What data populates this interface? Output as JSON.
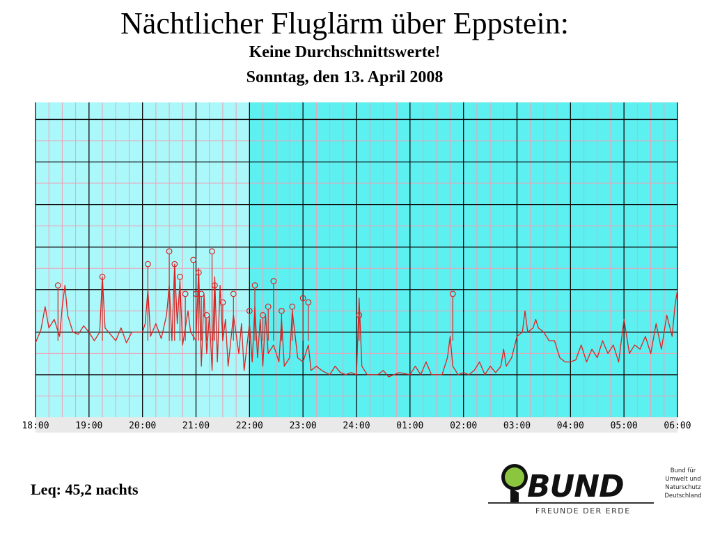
{
  "header": {
    "title": "Nächtlicher Fluglärm über Eppstein:",
    "subtitle": "Keine Durchschnittswerte!",
    "date_line": "Sonntag, den 13. April 2008"
  },
  "footer": {
    "leq": "Leq: 45,2 nachts"
  },
  "logo": {
    "name": "BUND",
    "tagline": "FREUNDE DER ERDE",
    "side_lines": [
      "Bund für",
      "Umwelt und",
      "Naturschutz",
      "Deutschland"
    ]
  },
  "colors": {
    "day_background": "#aaf8fa",
    "night_background": "#5cf0f0",
    "trace": "#dd2222",
    "major_grid": "#0a0a0a",
    "minor_grid": "#f0a0b4"
  },
  "chart_data": {
    "type": "line",
    "x_unit": "hours (18 = 18:00, 24 = 24:00, 30 = 06:00 next day)",
    "x_range": [
      18,
      30.0
    ],
    "night_from": 22,
    "x_ticks": [
      "18:00",
      "19:00",
      "20:00",
      "21:00",
      "22:00",
      "23:00",
      "24:00",
      "01:00",
      "02:00",
      "03:00",
      "04:00",
      "05:00",
      "06:00"
    ],
    "y_range": [
      0,
      7.4
    ],
    "grid": true,
    "peak_markers": true,
    "series": [
      {
        "points": [
          [
            18.0,
            1.75
          ],
          [
            18.1,
            2.05
          ],
          [
            18.18,
            2.6
          ],
          [
            18.25,
            2.1
          ],
          [
            18.35,
            2.3
          ],
          [
            18.45,
            1.9
          ],
          [
            18.5,
            2.6
          ],
          [
            18.55,
            3.1
          ],
          [
            18.6,
            2.4
          ],
          [
            18.7,
            2.0
          ],
          [
            18.8,
            1.95
          ],
          [
            18.9,
            2.15
          ],
          [
            19.0,
            2.0
          ],
          [
            19.1,
            1.8
          ],
          [
            19.2,
            2.0
          ],
          [
            19.25,
            3.3
          ],
          [
            19.3,
            2.1
          ],
          [
            19.4,
            1.95
          ],
          [
            19.5,
            1.8
          ],
          [
            19.6,
            2.1
          ],
          [
            19.7,
            1.75
          ],
          [
            19.8,
            2.0
          ],
          [
            19.9,
            2.0
          ],
          [
            20.0,
            2.0
          ],
          [
            20.05,
            2.2
          ],
          [
            20.1,
            3.0
          ],
          [
            20.15,
            1.9
          ],
          [
            20.25,
            2.2
          ],
          [
            20.35,
            1.85
          ],
          [
            20.45,
            2.4
          ],
          [
            20.5,
            3.1
          ],
          [
            20.55,
            1.8
          ],
          [
            20.6,
            3.6
          ],
          [
            20.65,
            2.2
          ],
          [
            20.7,
            3.2
          ],
          [
            20.75,
            1.7
          ],
          [
            20.85,
            2.5
          ],
          [
            20.9,
            2.0
          ],
          [
            21.0,
            1.8
          ],
          [
            21.05,
            3.5
          ],
          [
            21.1,
            1.2
          ],
          [
            21.15,
            2.9
          ],
          [
            21.2,
            1.5
          ],
          [
            21.25,
            2.4
          ],
          [
            21.3,
            1.1
          ],
          [
            21.35,
            3.3
          ],
          [
            21.4,
            1.3
          ],
          [
            21.45,
            3.1
          ],
          [
            21.5,
            1.8
          ],
          [
            21.55,
            2.3
          ],
          [
            21.6,
            1.2
          ],
          [
            21.7,
            2.4
          ],
          [
            21.8,
            1.5
          ],
          [
            21.85,
            2.2
          ],
          [
            21.9,
            1.1
          ],
          [
            22.0,
            2.2
          ],
          [
            22.05,
            1.3
          ],
          [
            22.1,
            2.6
          ],
          [
            22.15,
            1.4
          ],
          [
            22.2,
            2.3
          ],
          [
            22.25,
            1.2
          ],
          [
            22.3,
            2.4
          ],
          [
            22.35,
            1.5
          ],
          [
            22.45,
            1.7
          ],
          [
            22.55,
            1.3
          ],
          [
            22.6,
            2.3
          ],
          [
            22.65,
            1.2
          ],
          [
            22.75,
            1.4
          ],
          [
            22.8,
            2.5
          ],
          [
            22.9,
            1.4
          ],
          [
            23.0,
            1.3
          ],
          [
            23.05,
            1.5
          ],
          [
            23.1,
            1.7
          ],
          [
            23.15,
            1.1
          ],
          [
            23.25,
            1.2
          ],
          [
            23.35,
            1.1
          ],
          [
            23.5,
            1.0
          ],
          [
            23.6,
            1.2
          ],
          [
            23.7,
            1.05
          ],
          [
            23.8,
            1.0
          ],
          [
            23.9,
            1.05
          ],
          [
            24.0,
            1.0
          ],
          [
            24.05,
            2.8
          ],
          [
            24.1,
            1.2
          ],
          [
            24.2,
            1.0
          ],
          [
            24.4,
            1.0
          ],
          [
            24.5,
            1.1
          ],
          [
            24.6,
            0.95
          ],
          [
            24.8,
            1.05
          ],
          [
            25.0,
            1.0
          ],
          [
            25.1,
            1.2
          ],
          [
            25.2,
            1.0
          ],
          [
            25.3,
            1.3
          ],
          [
            25.4,
            1.0
          ],
          [
            25.5,
            1.0
          ],
          [
            25.6,
            1.0
          ],
          [
            25.7,
            1.4
          ],
          [
            25.75,
            1.9
          ],
          [
            25.8,
            1.2
          ],
          [
            25.9,
            1.0
          ],
          [
            26.0,
            1.05
          ],
          [
            26.1,
            1.0
          ],
          [
            26.2,
            1.1
          ],
          [
            26.3,
            1.3
          ],
          [
            26.4,
            1.0
          ],
          [
            26.5,
            1.2
          ],
          [
            26.6,
            1.05
          ],
          [
            26.7,
            1.2
          ],
          [
            26.75,
            1.6
          ],
          [
            26.8,
            1.2
          ],
          [
            26.9,
            1.4
          ],
          [
            27.0,
            1.9
          ],
          [
            27.1,
            2.0
          ],
          [
            27.15,
            2.5
          ],
          [
            27.2,
            2.0
          ],
          [
            27.3,
            2.1
          ],
          [
            27.35,
            2.3
          ],
          [
            27.4,
            2.1
          ],
          [
            27.5,
            2.0
          ],
          [
            27.6,
            1.8
          ],
          [
            27.7,
            1.8
          ],
          [
            27.75,
            1.6
          ],
          [
            27.8,
            1.4
          ],
          [
            27.9,
            1.3
          ],
          [
            28.0,
            1.3
          ],
          [
            28.1,
            1.35
          ],
          [
            28.2,
            1.7
          ],
          [
            28.3,
            1.3
          ],
          [
            28.4,
            1.6
          ],
          [
            28.5,
            1.4
          ],
          [
            28.6,
            1.8
          ],
          [
            28.7,
            1.5
          ],
          [
            28.8,
            1.7
          ],
          [
            28.9,
            1.3
          ],
          [
            29.0,
            2.3
          ],
          [
            29.1,
            1.5
          ],
          [
            29.2,
            1.7
          ],
          [
            29.3,
            1.6
          ],
          [
            29.4,
            1.9
          ],
          [
            29.5,
            1.5
          ],
          [
            29.6,
            2.2
          ],
          [
            29.7,
            1.6
          ],
          [
            29.8,
            2.4
          ],
          [
            29.9,
            1.9
          ],
          [
            29.95,
            2.6
          ],
          [
            30.0,
            3.0
          ]
        ],
        "peaks": [
          [
            18.42,
            3.1
          ],
          [
            19.25,
            3.3
          ],
          [
            20.1,
            3.6
          ],
          [
            20.5,
            3.9
          ],
          [
            20.6,
            3.6
          ],
          [
            20.7,
            3.3
          ],
          [
            20.8,
            2.9
          ],
          [
            20.95,
            3.7
          ],
          [
            21.0,
            2.9
          ],
          [
            21.05,
            3.4
          ],
          [
            21.1,
            2.9
          ],
          [
            21.2,
            2.4
          ],
          [
            21.3,
            3.9
          ],
          [
            21.35,
            3.1
          ],
          [
            21.5,
            2.7
          ],
          [
            21.7,
            2.9
          ],
          [
            22.0,
            2.5
          ],
          [
            22.1,
            3.1
          ],
          [
            22.25,
            2.4
          ],
          [
            22.35,
            2.6
          ],
          [
            22.45,
            3.2
          ],
          [
            22.6,
            2.5
          ],
          [
            22.8,
            2.6
          ],
          [
            23.0,
            2.8
          ],
          [
            23.1,
            2.7
          ],
          [
            24.05,
            2.4
          ],
          [
            25.8,
            2.9
          ]
        ]
      }
    ]
  }
}
